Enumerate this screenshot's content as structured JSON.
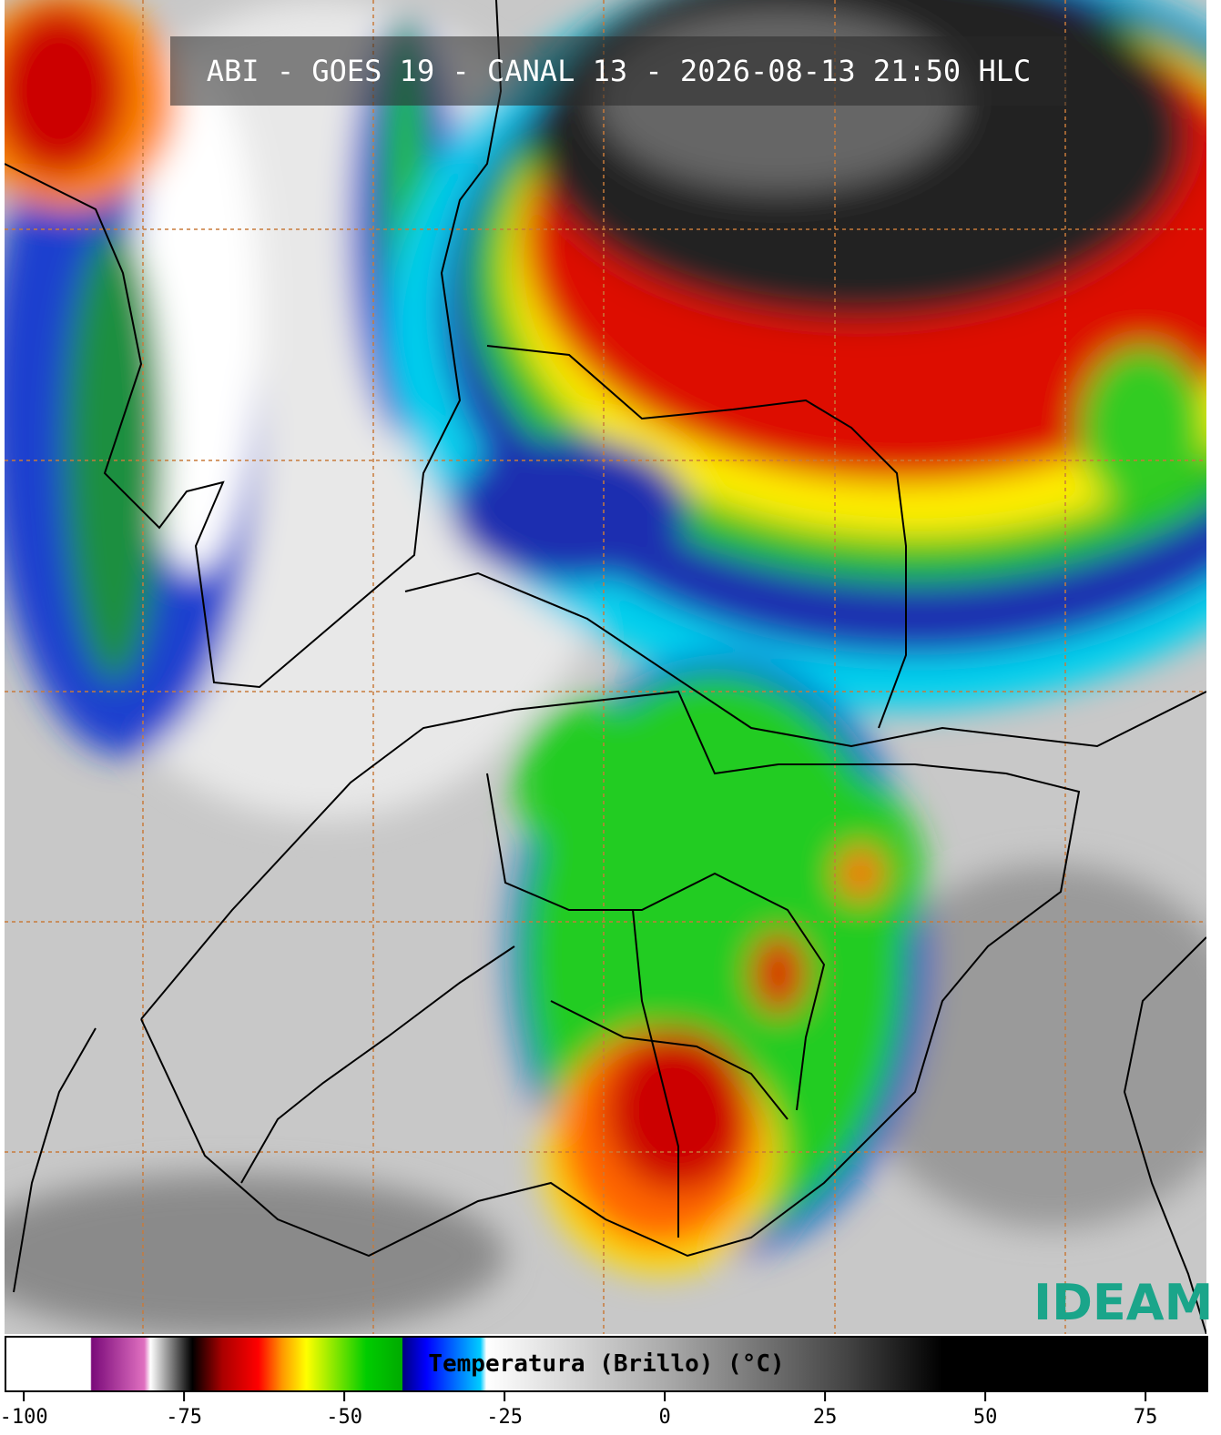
{
  "title": "ABI - GOES 19 - CANAL 13 - 2026-08-13 21:50 HLC",
  "colorbar": {
    "label": "Temperatura (Brillo) (°C)",
    "xlim": [
      -103,
      84.5
    ],
    "xticks": [
      -100,
      -75,
      -50,
      -25,
      0,
      25,
      50,
      75
    ]
  },
  "logo": "IDEAM"
}
